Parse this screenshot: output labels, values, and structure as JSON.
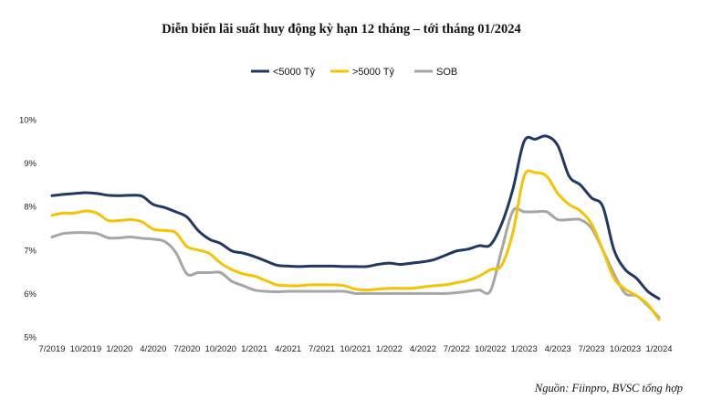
{
  "chart_data": {
    "type": "line",
    "title": "Diễn biến lãi suất huy động kỳ hạn 12 tháng – tới tháng 01/2024",
    "xlabel": "",
    "ylabel": "",
    "ylim": [
      5,
      10
    ],
    "y_ticks": [
      "10%",
      "9%",
      "8%",
      "7%",
      "6%",
      "5%"
    ],
    "x_tick_labels": [
      "7/2019",
      "10/2019",
      "1/2020",
      "4/2020",
      "7/2020",
      "10/2020",
      "1/2021",
      "4/2021",
      "7/2021",
      "10/2021",
      "1/2022",
      "4/2022",
      "7/2022",
      "10/2022",
      "1/2023",
      "4/2023",
      "7/2023",
      "10/2023",
      "1/2024"
    ],
    "grid": false,
    "legend_position": "top-center",
    "x": [
      "7/2019",
      "8/2019",
      "9/2019",
      "10/2019",
      "11/2019",
      "12/2019",
      "1/2020",
      "2/2020",
      "3/2020",
      "4/2020",
      "5/2020",
      "6/2020",
      "7/2020",
      "8/2020",
      "9/2020",
      "10/2020",
      "11/2020",
      "12/2020",
      "1/2021",
      "2/2021",
      "3/2021",
      "4/2021",
      "5/2021",
      "6/2021",
      "7/2021",
      "8/2021",
      "9/2021",
      "10/2021",
      "11/2021",
      "12/2021",
      "1/2022",
      "2/2022",
      "3/2022",
      "4/2022",
      "5/2022",
      "6/2022",
      "7/2022",
      "8/2022",
      "9/2022",
      "10/2022",
      "11/2022",
      "12/2022",
      "1/2023",
      "2/2023",
      "3/2023",
      "4/2023",
      "5/2023",
      "6/2023",
      "7/2023",
      "8/2023",
      "9/2023",
      "10/2023",
      "11/2023",
      "12/2023",
      "1/2024"
    ],
    "series": [
      {
        "name": "<5000 Tỷ",
        "color": "#1f3864",
        "values": [
          8.25,
          8.28,
          8.3,
          8.32,
          8.3,
          8.26,
          8.25,
          8.26,
          8.24,
          8.05,
          7.98,
          7.88,
          7.76,
          7.45,
          7.25,
          7.15,
          6.98,
          6.93,
          6.85,
          6.75,
          6.65,
          6.63,
          6.62,
          6.63,
          6.63,
          6.63,
          6.62,
          6.62,
          6.62,
          6.67,
          6.7,
          6.67,
          6.7,
          6.73,
          6.78,
          6.88,
          6.98,
          7.02,
          7.1,
          7.12,
          7.6,
          8.4,
          9.5,
          9.55,
          9.62,
          9.4,
          8.7,
          8.5,
          8.2,
          8.0,
          7.0,
          6.55,
          6.35,
          6.05,
          5.88
        ]
      },
      {
        "name": ">5000 Tỷ",
        "color": "#f5c400",
        "values": [
          7.8,
          7.85,
          7.85,
          7.9,
          7.85,
          7.68,
          7.68,
          7.7,
          7.65,
          7.48,
          7.45,
          7.4,
          7.08,
          7.0,
          6.92,
          6.7,
          6.55,
          6.45,
          6.4,
          6.3,
          6.2,
          6.18,
          6.18,
          6.2,
          6.2,
          6.2,
          6.18,
          6.1,
          6.08,
          6.1,
          6.12,
          6.12,
          6.12,
          6.15,
          6.18,
          6.2,
          6.25,
          6.3,
          6.4,
          6.55,
          6.65,
          7.4,
          8.7,
          8.78,
          8.7,
          8.3,
          8.05,
          7.9,
          7.6,
          7.0,
          6.35,
          6.1,
          5.95,
          5.75,
          5.4
        ]
      },
      {
        "name": "SOB",
        "color": "#a6a6a6",
        "values": [
          7.3,
          7.38,
          7.4,
          7.4,
          7.38,
          7.28,
          7.28,
          7.3,
          7.27,
          7.25,
          7.2,
          6.95,
          6.45,
          6.48,
          6.48,
          6.48,
          6.28,
          6.18,
          6.08,
          6.05,
          6.04,
          6.05,
          6.05,
          6.05,
          6.05,
          6.05,
          6.05,
          6.0,
          6.0,
          6.0,
          6.0,
          6.0,
          6.0,
          6.0,
          6.0,
          6.0,
          6.02,
          6.05,
          6.08,
          6.06,
          7.0,
          7.9,
          7.88,
          7.88,
          7.88,
          7.7,
          7.7,
          7.7,
          7.5,
          7.0,
          6.45,
          6.0,
          5.95,
          5.72,
          5.45
        ]
      }
    ]
  },
  "source_note": "Nguồn: Fiinpro, BVSC tổng hợp"
}
